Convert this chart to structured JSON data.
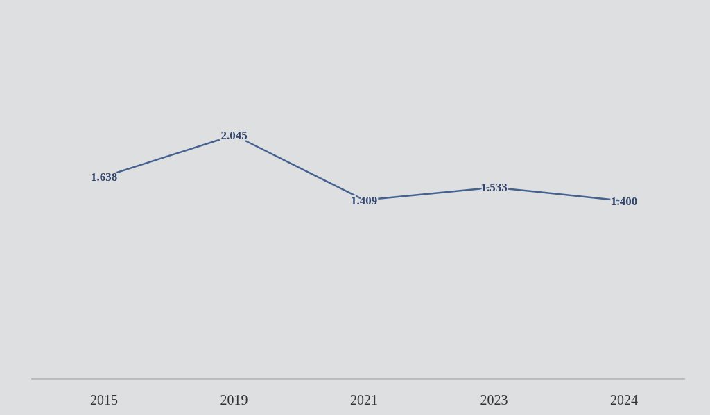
{
  "chart_data": {
    "type": "line",
    "categories": [
      "2015",
      "2019",
      "2021",
      "2023",
      "2024"
    ],
    "series": [
      {
        "color": "#44618f",
        "values": [
          1.638,
          2.045,
          1.409,
          1.533,
          1.4
        ],
        "value_labels": [
          "1.638",
          "2.045",
          "1.409",
          "1.533",
          "1.400"
        ]
      }
    ],
    "marker": "none",
    "line_style": "solid"
  }
}
